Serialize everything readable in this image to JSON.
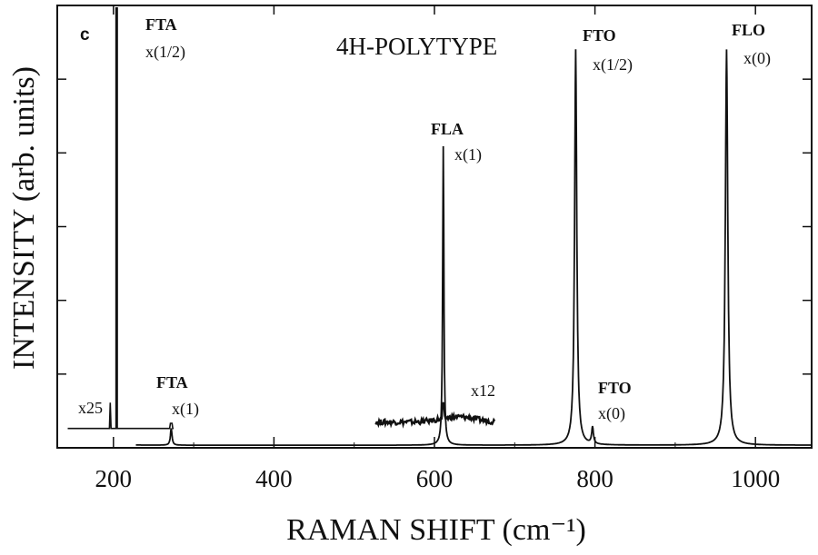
{
  "chart_data": {
    "type": "line",
    "panel_label": "c",
    "title": "4H-POLYTYPE",
    "xlabel": "RAMAN SHIFT (cm⁻¹)",
    "ylabel": "INTENSITY (arb. units)",
    "xlim": [
      130,
      1070
    ],
    "ylim": [
      0,
      1
    ],
    "x_ticks": [
      200,
      400,
      600,
      800,
      1000
    ],
    "x_tick_labels": [
      "200",
      "400",
      "600",
      "800",
      "1000"
    ],
    "grid": false,
    "colors": {
      "line": "#111111",
      "axes": "#111111",
      "background": "#ffffff"
    },
    "peaks": [
      {
        "name": "FTA x(1/2)",
        "x": 204,
        "intensity": 1.0
      },
      {
        "name": "FTA x(1)",
        "x": 272,
        "intensity": 0.04
      },
      {
        "name": "FLA x(1)",
        "x": 611,
        "intensity": 0.71
      },
      {
        "name": "FTO x(1/2)",
        "x": 776,
        "intensity": 0.94
      },
      {
        "name": "FTO x(0)",
        "x": 797,
        "intensity": 0.04
      },
      {
        "name": "FLO x(0)",
        "x": 964,
        "intensity": 0.94
      }
    ],
    "magnified_segments": [
      {
        "label": "x25",
        "x": [
          143,
          275
        ],
        "baseline": 0.045
      },
      {
        "label": "x12",
        "x": [
          527,
          675
        ],
        "baseline": 0.06
      }
    ],
    "annotations": [
      {
        "id": "fta-half",
        "lines": [
          "FTA",
          "x(1/2)"
        ]
      },
      {
        "id": "fta-one",
        "lines": [
          "FTA",
          "x(1)"
        ]
      },
      {
        "id": "fla-one",
        "lines": [
          "FLA",
          "x(1)"
        ]
      },
      {
        "id": "fto-half",
        "lines": [
          "FTO",
          "x(1/2)"
        ]
      },
      {
        "id": "fto-zero",
        "lines": [
          "FTO",
          "x(0)"
        ]
      },
      {
        "id": "flo-zero",
        "lines": [
          "FLO",
          "x(0)"
        ]
      },
      {
        "id": "mag-x25",
        "lines": [
          "x25"
        ]
      },
      {
        "id": "mag-x12",
        "lines": [
          "x12"
        ]
      }
    ]
  }
}
